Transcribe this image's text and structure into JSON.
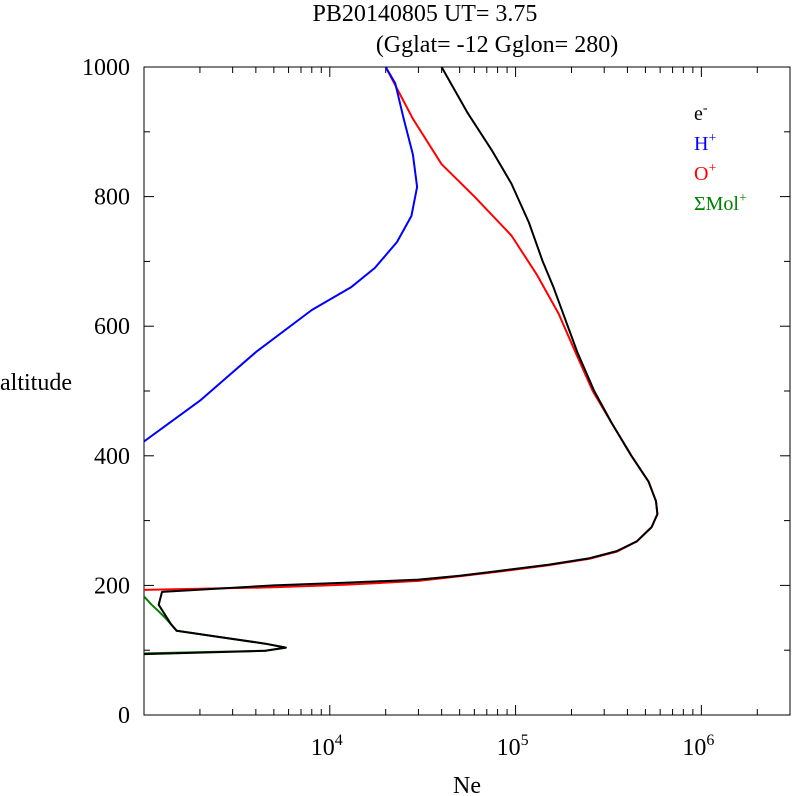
{
  "chart_data": {
    "type": "line",
    "title": "PB20140805   UT=  3.75",
    "subtitle": "(Gglat= -12   Gglon=  280)",
    "xlabel": "Ne",
    "ylabel": "altitude",
    "x_scale": "log",
    "xlim": [
      1000,
      3000000
    ],
    "ylim": [
      0,
      1000
    ],
    "x_ticks": [
      {
        "value": 10000,
        "base": "10",
        "exp": "4"
      },
      {
        "value": 100000,
        "base": "10",
        "exp": "5"
      },
      {
        "value": 1000000,
        "base": "10",
        "exp": "6"
      }
    ],
    "y_ticks": [
      {
        "value": 0,
        "label": "0"
      },
      {
        "value": 200,
        "label": "200"
      },
      {
        "value": 400,
        "label": "400"
      },
      {
        "value": 600,
        "label": "600"
      },
      {
        "value": 800,
        "label": "800"
      },
      {
        "value": 1000,
        "label": "1000"
      }
    ],
    "legend_position": "top-right",
    "legend": [
      {
        "base": "e",
        "sup": "-",
        "color": "#000000"
      },
      {
        "base": "H",
        "sup": "+",
        "color": "#0000ff"
      },
      {
        "base": "O",
        "sup": "+",
        "color": "#ff0000"
      },
      {
        "base": "ΣMol",
        "sup": "+",
        "color": "#008000"
      }
    ],
    "series": [
      {
        "color": "#ff0000",
        "points": [
          [
            1000,
            193
          ],
          [
            5000,
            197
          ],
          [
            12000,
            201
          ],
          [
            30000,
            207
          ],
          [
            50000,
            214
          ],
          [
            80000,
            221
          ],
          [
            150000,
            231
          ],
          [
            250000,
            241
          ],
          [
            350000,
            252
          ],
          [
            450000,
            268
          ],
          [
            540000,
            290
          ],
          [
            580000,
            310
          ],
          [
            570000,
            330
          ],
          [
            520000,
            360
          ],
          [
            420000,
            400
          ],
          [
            330000,
            450
          ],
          [
            260000,
            500
          ],
          [
            210000,
            560
          ],
          [
            170000,
            620
          ],
          [
            130000,
            680
          ],
          [
            95000,
            740
          ],
          [
            60000,
            800
          ],
          [
            40000,
            850
          ],
          [
            28000,
            920
          ],
          [
            20000,
            1000
          ]
        ]
      },
      {
        "color": "#0000ff",
        "points": [
          [
            1000,
            422
          ],
          [
            2000,
            485
          ],
          [
            4000,
            560
          ],
          [
            8000,
            625
          ],
          [
            13000,
            660
          ],
          [
            17500,
            690
          ],
          [
            23000,
            730
          ],
          [
            27500,
            770
          ],
          [
            29500,
            815
          ],
          [
            28000,
            865
          ],
          [
            25000,
            920
          ],
          [
            22500,
            975
          ],
          [
            20000,
            1000
          ]
        ]
      },
      {
        "color": "#008000",
        "points": [
          [
            1000,
            183
          ],
          [
            1100,
            170
          ],
          [
            1200,
            160
          ],
          [
            1300,
            150
          ],
          [
            1400,
            140
          ],
          [
            1500,
            130
          ],
          [
            4500,
            110
          ],
          [
            5800,
            104
          ],
          [
            4500,
            99
          ],
          [
            1000,
            95
          ]
        ]
      },
      {
        "color": "#000000",
        "points": [
          [
            1000,
            94
          ],
          [
            4500,
            99
          ],
          [
            5800,
            104
          ],
          [
            4500,
            110
          ],
          [
            1500,
            130
          ],
          [
            1400,
            140
          ],
          [
            1200,
            170
          ],
          [
            1250,
            190
          ],
          [
            5000,
            200
          ],
          [
            12000,
            204
          ],
          [
            30000,
            209
          ],
          [
            50000,
            215
          ],
          [
            80000,
            222
          ],
          [
            150000,
            232
          ],
          [
            250000,
            242
          ],
          [
            350000,
            253
          ],
          [
            450000,
            268
          ],
          [
            540000,
            290
          ],
          [
            580000,
            310
          ],
          [
            570000,
            330
          ],
          [
            520000,
            360
          ],
          [
            420000,
            400
          ],
          [
            330000,
            450
          ],
          [
            265000,
            500
          ],
          [
            215000,
            560
          ],
          [
            180000,
            620
          ],
          [
            160000,
            660
          ],
          [
            140000,
            700
          ],
          [
            118000,
            760
          ],
          [
            95000,
            820
          ],
          [
            75000,
            870
          ],
          [
            55000,
            930
          ],
          [
            40000,
            1000
          ]
        ]
      }
    ]
  }
}
